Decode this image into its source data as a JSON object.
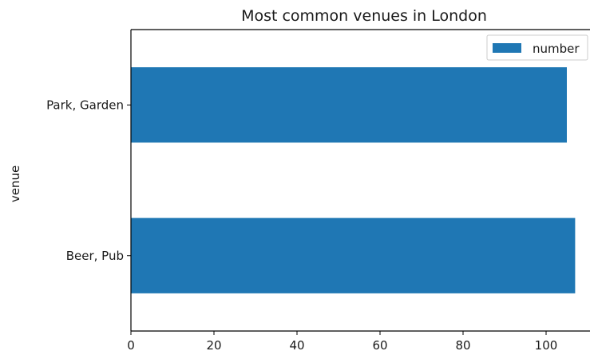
{
  "chart_data": {
    "type": "bar",
    "orientation": "horizontal",
    "title": "Most common venues in London",
    "xlabel": "",
    "ylabel": "venue",
    "categories": [
      "Beer, Pub",
      "Park, Garden"
    ],
    "series": [
      {
        "name": "number",
        "values": [
          107,
          105
        ],
        "color": "#1f77b4"
      }
    ],
    "xlim": [
      0,
      110
    ],
    "xticks": [
      0,
      20,
      40,
      60,
      80,
      100
    ],
    "legend": "top-right",
    "grid": false
  }
}
